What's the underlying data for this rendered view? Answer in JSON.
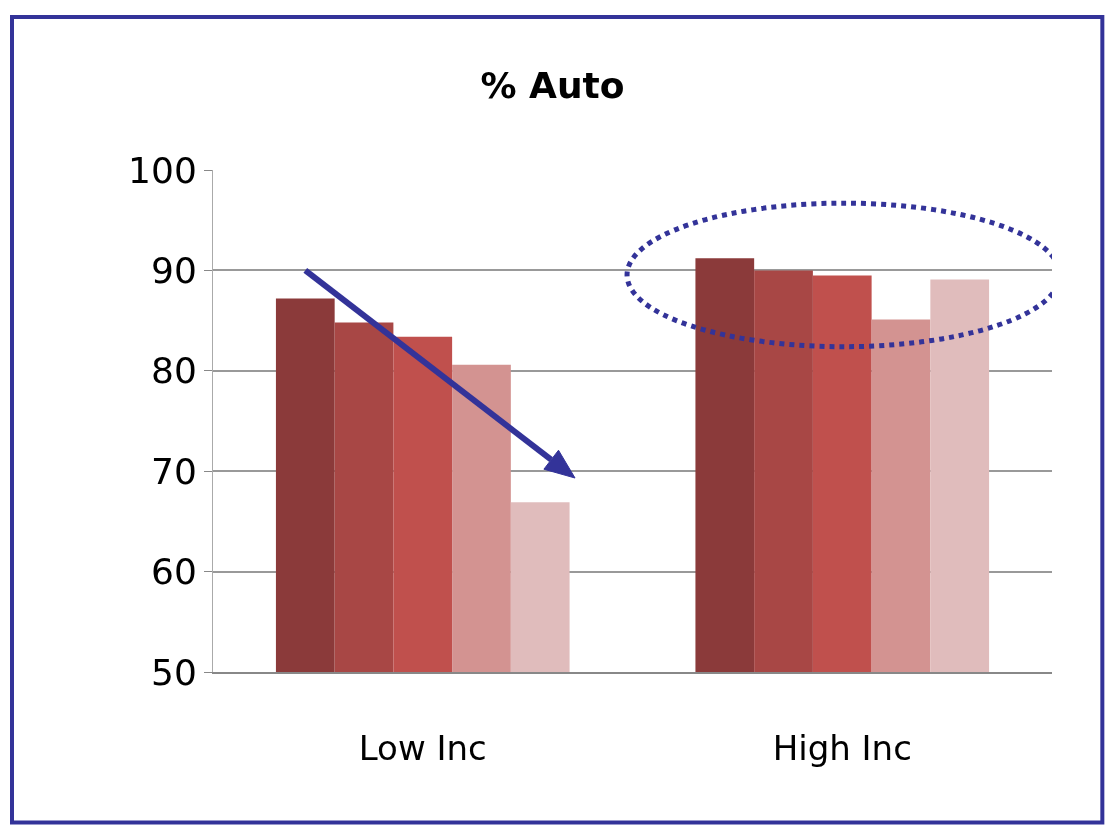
{
  "chart_data": {
    "type": "bar",
    "title": "% Auto",
    "categories": [
      "Low Inc",
      "High Inc"
    ],
    "series": [
      {
        "color": "#8b3a3a",
        "values": [
          87.2,
          91.2
        ]
      },
      {
        "color": "#a84745",
        "values": [
          84.8,
          90.0
        ]
      },
      {
        "color": "#c0504d",
        "values": [
          83.4,
          89.5
        ]
      },
      {
        "color": "#d39391",
        "values": [
          80.6,
          85.1
        ]
      },
      {
        "color": "#e0bcbc",
        "values": [
          66.9,
          89.1
        ]
      }
    ],
    "ylim": [
      50,
      100
    ],
    "yticks": [
      50,
      60,
      70,
      80,
      90,
      100
    ],
    "grid": "y"
  }
}
